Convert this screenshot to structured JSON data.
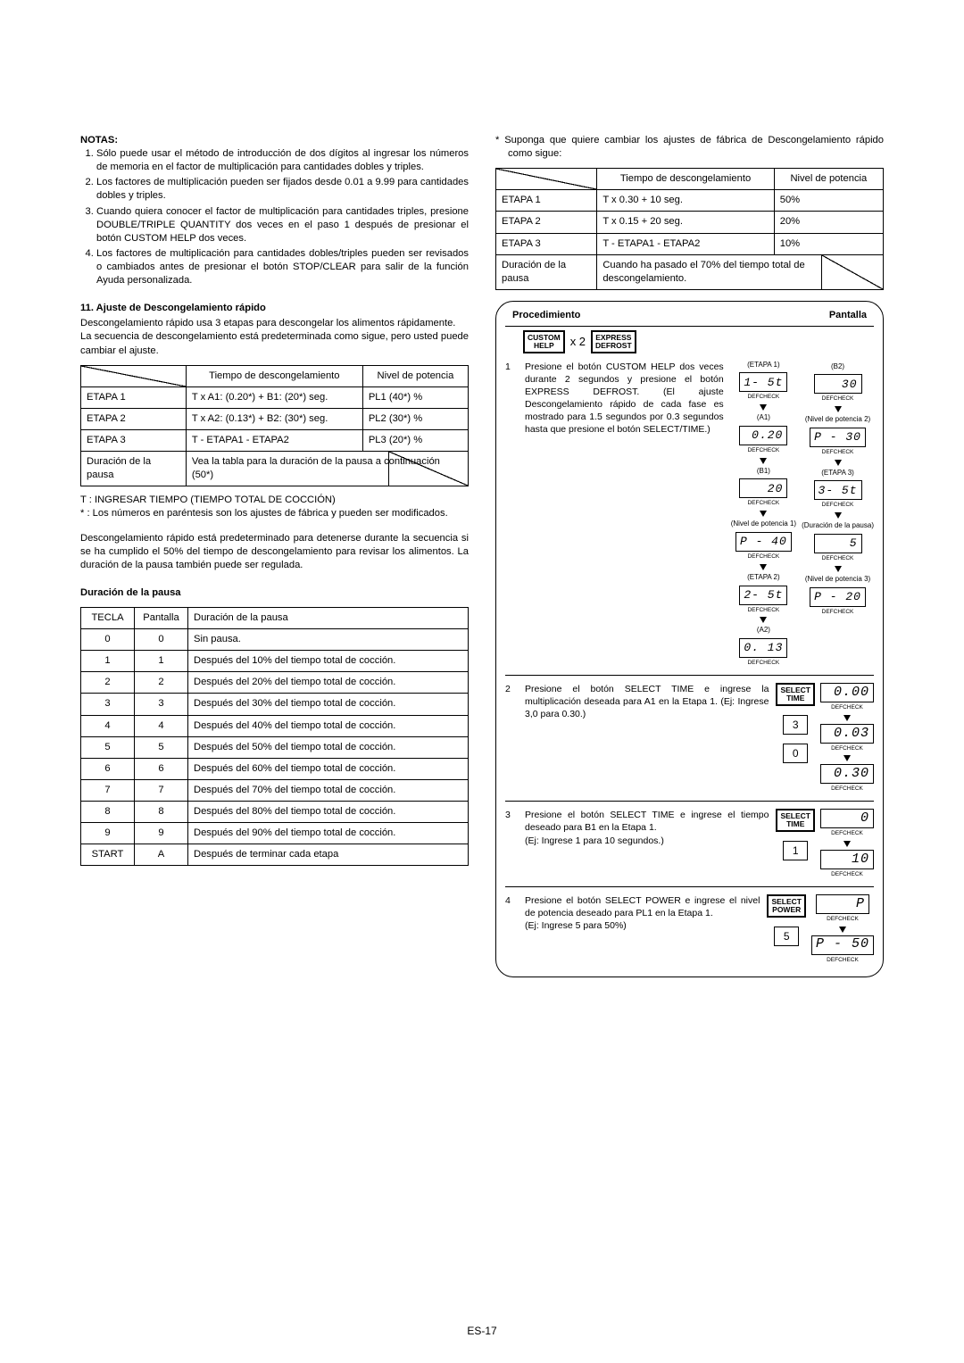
{
  "page_number": "ES-17",
  "left": {
    "notas_title": "NOTAS:",
    "notas": [
      "Sólo puede usar el método de introducción de dos dígitos al ingresar los números de memoria en el factor de multiplicación para cantidades dobles y triples.",
      "Los factores de multiplicación pueden ser fijados desde 0.01 a 9.99  para cantidades dobles y triples.",
      "Cuando quiera conocer el factor de multiplicación para cantidades triples, presione DOUBLE/TRIPLE QUANTITY dos veces en el paso 1 después de presionar el botón CUSTOM HELP dos veces.",
      "Los factores de multiplicación para cantidades dobles/triples pueden ser revisados o cambiados antes de presionar el botón STOP/CLEAR para salir de la función Ayuda personalizada."
    ],
    "section11_title": "11. Ajuste de Descongelamiento rápido",
    "section11_p1": "Descongelamiento rápido usa 3 etapas para descongelar los alimentos rápidamente.",
    "section11_p2": "La secuencia de descongelamiento está predeterminada como sigue, pero usted puede cambiar el ajuste.",
    "table1": {
      "headers": [
        "",
        "Tiempo de descongelamiento",
        "Nivel de potencia"
      ],
      "rows": [
        [
          "ETAPA 1",
          "T  x A1: (0.20*) + B1: (20*) seg.",
          "PL1 (40*) %"
        ],
        [
          "ETAPA 2",
          "T x A2: (0.13*) + B2: (30*) seg.",
          "PL2 (30*) %"
        ],
        [
          "ETAPA 3",
          "T - ETAPA1 - ETAPA2",
          "PL3 (20*) %"
        ],
        [
          "Duración de la pausa",
          "Vea la tabla para la duración de la pausa a continuación (50*)",
          ""
        ]
      ]
    },
    "foot_t": "T   :   INGRESAR TIEMPO (TIEMPO TOTAL DE COCCIÓN)",
    "foot_star": "*    :   Los números en paréntesis son los ajustes de fábrica y pueden ser modificados.",
    "p3": "Descongelamiento rápido está predeterminado para detenerse durante la secuencia si se ha cumplido el 50% del tiempo de descongelamiento para revisar los alimentos. La duración de la pausa también puede ser regulada.",
    "pause_title": "Duración de la pausa",
    "pause_table": {
      "headers": [
        "TECLA",
        "Pantalla",
        "Duración de la pausa"
      ],
      "rows": [
        [
          "0",
          "0",
          "Sin pausa."
        ],
        [
          "1",
          "1",
          "Después del 10% del tiempo total de cocción."
        ],
        [
          "2",
          "2",
          "Después del 20% del tiempo total de cocción."
        ],
        [
          "3",
          "3",
          "Después del 30% del tiempo total de cocción."
        ],
        [
          "4",
          "4",
          "Después del 40% del tiempo total de cocción."
        ],
        [
          "5",
          "5",
          "Después del 50% del tiempo total de cocción."
        ],
        [
          "6",
          "6",
          "Después del 60% del tiempo total de cocción."
        ],
        [
          "7",
          "7",
          "Después del 70% del tiempo total de cocción."
        ],
        [
          "8",
          "8",
          "Después del 80% del tiempo total de cocción."
        ],
        [
          "9",
          "9",
          "Después del 90% del tiempo total de cocción."
        ],
        [
          "START",
          "A",
          "Después de terminar cada etapa"
        ]
      ]
    }
  },
  "right": {
    "intro": "*  Suponga que quiere cambiar los ajustes de fábrica de Descongelamiento rápido como sigue:",
    "table2": {
      "headers": [
        "",
        "Tiempo de descongelamiento",
        "Nivel de potencia"
      ],
      "rows": [
        [
          "ETAPA 1",
          "T x 0.30 + 10 seg.",
          "50%"
        ],
        [
          "ETAPA 2",
          "T x 0.15 + 20 seg.",
          "20%"
        ],
        [
          "ETAPA 3",
          "T - ETAPA1 - ETAPA2",
          "10%"
        ],
        [
          "Duración de la pausa",
          "Cuando ha pasado el 70% del tiempo total de descongelamiento.",
          ""
        ]
      ]
    },
    "proc_title_left": "Procedimiento",
    "proc_title_right": "Pantalla",
    "btn_custom": "CUSTOM\nHELP",
    "btn_express": "EXPRESS\nDEFROST",
    "btn_select_time": "SELECT\nTIME",
    "btn_select_power": "SELECT\nPOWER",
    "x2": "x 2",
    "step1_text": "Presione el botón CUSTOM HELP dos veces durante 2 segundos y presione el botón EXPRESS DEFROST. (El ajuste Descongelamiento rápido de cada fase es mostrado para 1.5 segundos por 0.3 segundos hasta que presione el botón SELECT/TIME.)",
    "step1_displays": {
      "colA": [
        {
          "paren": "(ETAPA 1)",
          "disp": "1- 5t"
        },
        {
          "paren": "(A1)",
          "disp": "0.20"
        },
        {
          "paren": "(B1)",
          "disp": "20"
        },
        {
          "paren": "(Nivel de potencia 1)",
          "disp": "P - 40"
        },
        {
          "paren": "(ETAPA 2)",
          "disp": "2- 5t"
        },
        {
          "paren": "(A2)",
          "disp": "0. 13"
        }
      ],
      "colB": [
        {
          "paren": "(B2)",
          "disp": "30"
        },
        {
          "paren": "(Nivel de potencia 2)",
          "disp": "P - 30"
        },
        {
          "paren": "(ETAPA 3)",
          "disp": "3- 5t"
        },
        {
          "paren": "(Duración de la pausa)",
          "disp": "5"
        },
        {
          "paren": "(Nivel de potencia 3)",
          "disp": "P - 20"
        }
      ]
    },
    "step2_text": "Presione el botón SELECT TIME e ingrese la multiplicación deseada para A1 en la Etapa 1. (Ej: Ingrese 3,0 para 0.30.)",
    "step2_keys": [
      "3",
      "0"
    ],
    "step2_disps": [
      "0.00",
      "0.03",
      "0.30"
    ],
    "step3_text": "Presione el botón SELECT TIME e ingrese el tiempo deseado para B1 en la Etapa 1.\n(Ej: Ingrese 1 para 10 segundos.)",
    "step3_keys": [
      "1"
    ],
    "step3_disps": [
      "0",
      "10"
    ],
    "step4_text": "Presione el botón SELECT POWER e ingrese el nivel de potencia deseado para PL1 en la Etapa 1.\n(Ej: Ingrese 5 para 50%)",
    "step4_keys": [
      "5"
    ],
    "step4_disps": [
      "P",
      "P - 50"
    ],
    "deflabel_l": "DEF",
    "deflabel_r": "CHECK"
  }
}
